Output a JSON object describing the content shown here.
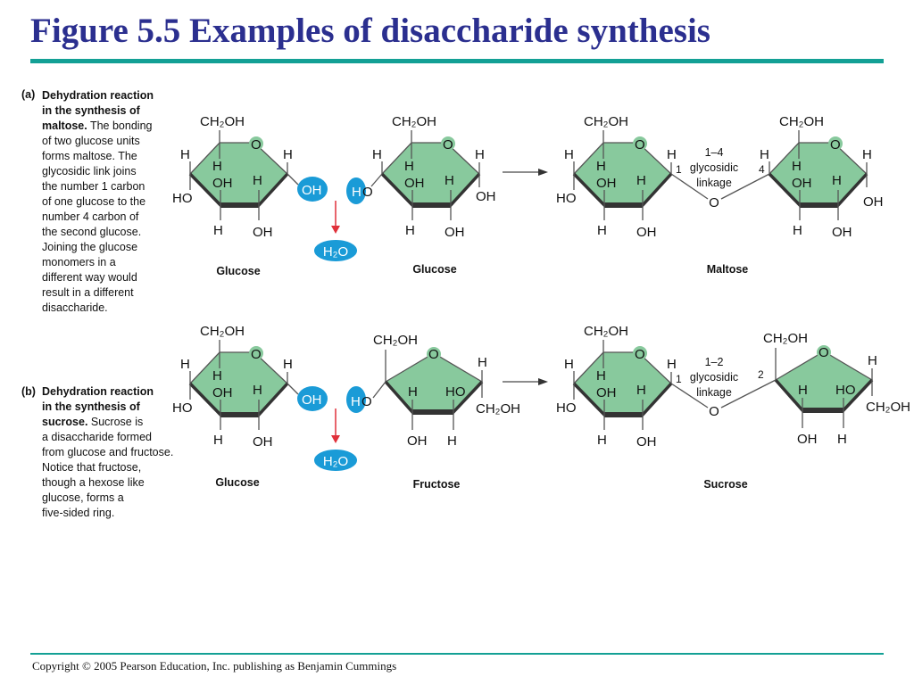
{
  "title": "Figure 5.5 Examples of disaccharide synthesis",
  "panel_a": {
    "tag": "(a)",
    "lines": [
      {
        "b": "Dehydration reaction",
        "t": ""
      },
      {
        "b": "in the synthesis of",
        "t": ""
      },
      {
        "b": "maltose.",
        "t": " The bonding"
      },
      {
        "b": "",
        "t": "of two glucose units"
      },
      {
        "b": "",
        "t": "forms maltose. The"
      },
      {
        "b": "",
        "t": "glycosidic link joins"
      },
      {
        "b": "",
        "t": "the number 1 carbon"
      },
      {
        "b": "",
        "t": "of one glucose to the"
      },
      {
        "b": "",
        "t": "number 4 carbon of"
      },
      {
        "b": "",
        "t": "the second glucose."
      },
      {
        "b": "",
        "t": "Joining the glucose"
      },
      {
        "b": "",
        "t": "monomers in a"
      },
      {
        "b": "",
        "t": "different way would"
      },
      {
        "b": "",
        "t": "result in a different"
      },
      {
        "b": "",
        "t": "disaccharide."
      }
    ]
  },
  "panel_b": {
    "tag": "(b)",
    "lines": [
      {
        "b": "Dehydration reaction",
        "t": ""
      },
      {
        "b": "in the synthesis of",
        "t": ""
      },
      {
        "b": "sucrose.",
        "t": " Sucrose is"
      },
      {
        "b": "",
        "t": "a disaccharide formed"
      },
      {
        "b": "",
        "t": "from glucose and fructose."
      },
      {
        "b": "",
        "t": "Notice that fructose,"
      },
      {
        "b": "",
        "t": "though a hexose like"
      },
      {
        "b": "",
        "t": "glucose, forms a"
      },
      {
        "b": "",
        "t": "five-sided ring."
      }
    ]
  },
  "molecules": {
    "a_glucose1": {
      "name": "Glucose",
      "atoms": [
        "CH₂OH",
        "O",
        "H",
        "HO",
        "H",
        "OH",
        "H",
        "H",
        "H",
        "OH",
        "OH"
      ]
    },
    "a_glucose2": {
      "name": "Glucose",
      "atoms": [
        "CH₂OH",
        "O",
        "H",
        "H",
        "O",
        "H",
        "OH",
        "H",
        "H",
        "H",
        "OH",
        "OH"
      ]
    },
    "a_maltose": {
      "name": "Maltose",
      "atoms": [
        "CH₂OH",
        "O",
        "H",
        "HO",
        "H",
        "OH",
        "H",
        "H",
        "H",
        "OH",
        "1",
        "CH₂OH",
        "O",
        "H",
        "4",
        "H",
        "OH",
        "H",
        "H",
        "H",
        "OH",
        "OH",
        "O"
      ],
      "linkage": [
        "1–4",
        "glycosidic",
        "linkage"
      ]
    },
    "b_glucose": {
      "name": "Glucose",
      "atoms": [
        "CH₂OH",
        "O",
        "H",
        "HO",
        "H",
        "OH",
        "H",
        "H",
        "H",
        "OH",
        "OH"
      ]
    },
    "b_fructose": {
      "name": "Fructose",
      "atoms": [
        "CH₂OH",
        "O",
        "H",
        "CH₂OH",
        "H",
        "HO",
        "OH",
        "H",
        "H",
        "O"
      ]
    },
    "b_sucrose": {
      "name": "Sucrose",
      "atoms": [
        "CH₂OH",
        "O",
        "H",
        "HO",
        "H",
        "OH",
        "H",
        "H",
        "H",
        "OH",
        "1",
        "CH₂OH",
        "O",
        "H",
        "CH₂OH",
        "H",
        "HO",
        "OH",
        "H",
        "2",
        "O"
      ],
      "linkage": [
        "1–2",
        "glycosidic",
        "linkage"
      ]
    }
  },
  "water": [
    "H₂O",
    "H₂O"
  ],
  "colors": {
    "ring_fill": "#88c99d",
    "water_blue": "#1a9bd7",
    "arrow_red": "#e0303a",
    "title": "#2b2f8f",
    "rule": "#13a095"
  },
  "footer": {
    "copyright": "Copyright © 2005 Pearson Education, Inc. publishing as Benjamin Cummings"
  }
}
